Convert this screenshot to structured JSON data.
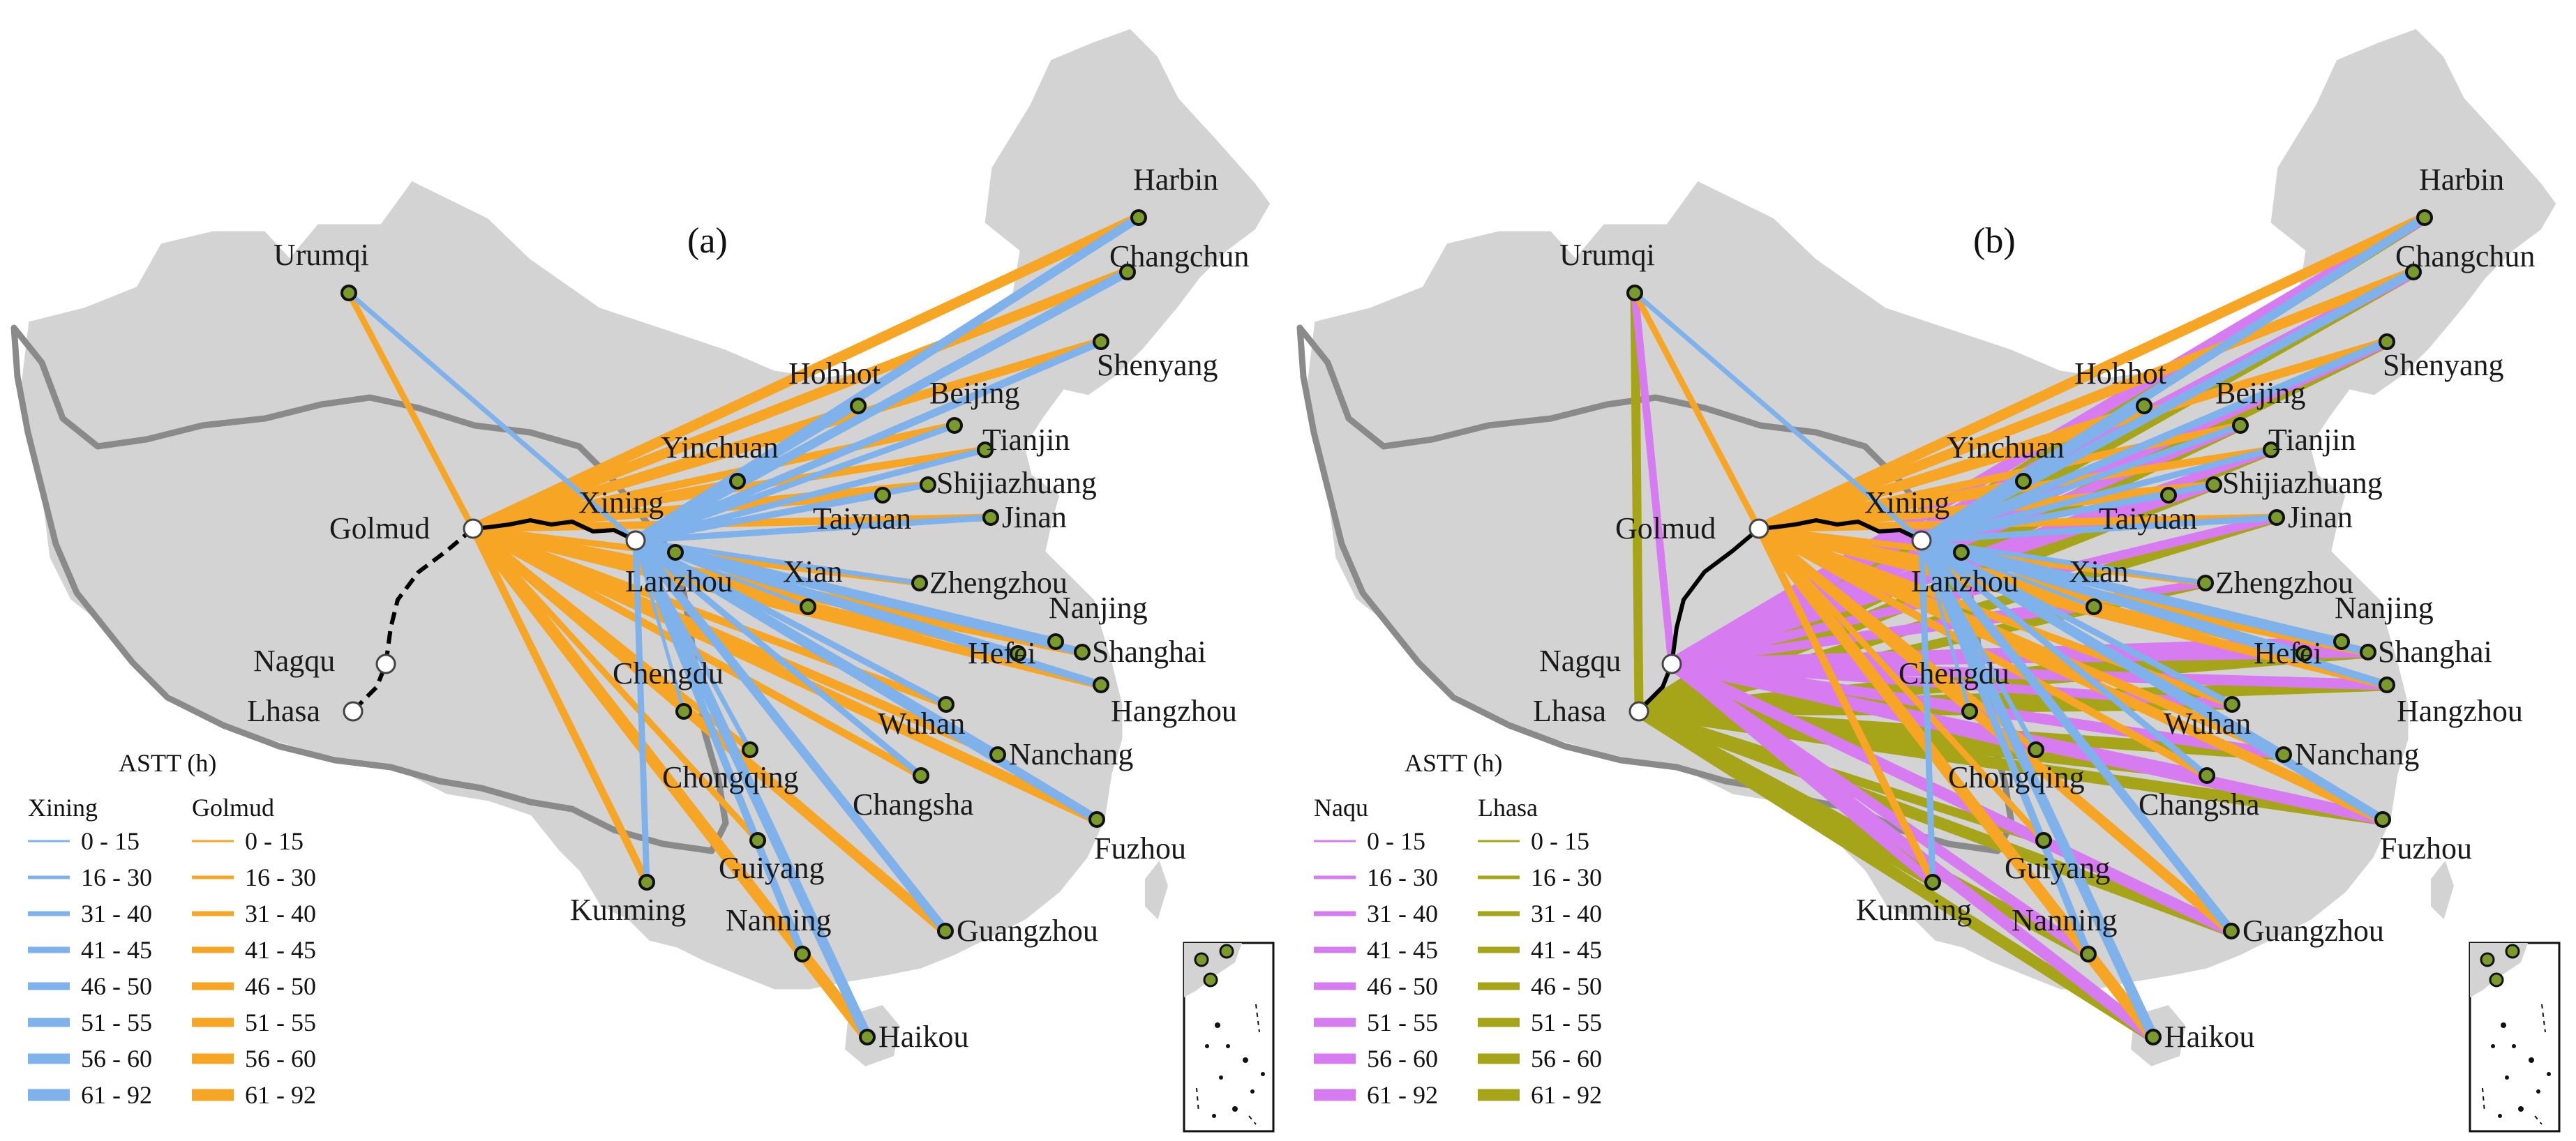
{
  "colors": {
    "xining": "#7fb2ea",
    "golmud": "#f7a525",
    "naqu": "#d77cf0",
    "lhasa": "#a6a51a",
    "land": "#d3d3d3",
    "land_stroke": "#ffffff",
    "border": "#8a8a8a",
    "railway": "#000000",
    "city_fill": "#7a9a2c",
    "city_stroke": "#111111",
    "origin_fill": "#ffffff"
  },
  "legend": {
    "title": "ASTT (h)",
    "classes": [
      "0 - 15",
      "16 - 30",
      "31 - 40",
      "41 - 45",
      "46 - 50",
      "51 - 55",
      "56 - 60",
      "61 - 92"
    ]
  },
  "panels": [
    {
      "tag": "(a)",
      "legend_cols": [
        "Xining",
        "Golmud"
      ],
      "origins": [
        "Xining",
        "Golmud",
        "Nagqu",
        "Lhasa"
      ],
      "hubs": [
        "Xining",
        "Golmud"
      ],
      "labels": [
        {
          "name": "Harbin"
        },
        {
          "name": "Changchun"
        },
        {
          "name": "Shenyang"
        },
        {
          "name": "Hohhot"
        },
        {
          "name": "Beijing"
        },
        {
          "name": "Tianjin"
        },
        {
          "name": "Yinchuan"
        },
        {
          "name": "Shijiazhuang"
        },
        {
          "name": "Taiyuan"
        },
        {
          "name": "Jinan"
        },
        {
          "name": "Xining"
        },
        {
          "name": "Golmud"
        },
        {
          "name": "Lanzhou"
        },
        {
          "name": "Xian"
        },
        {
          "name": "Zhengzhou"
        },
        {
          "name": "Nanjing"
        },
        {
          "name": "Hefei"
        },
        {
          "name": "Shanghai"
        },
        {
          "name": "Hangzhou"
        },
        {
          "name": "Nagqu"
        },
        {
          "name": "Chengdu"
        },
        {
          "name": "Wuhan"
        },
        {
          "name": "Lhasa"
        },
        {
          "name": "Chongqing"
        },
        {
          "name": "Nanchang"
        },
        {
          "name": "Changsha"
        },
        {
          "name": "Fuzhou"
        },
        {
          "name": "Guiyang"
        },
        {
          "name": "Kunming"
        },
        {
          "name": "Nanning"
        },
        {
          "name": "Guangzhou"
        },
        {
          "name": "Haikou"
        },
        {
          "name": "Urumqi"
        }
      ]
    },
    {
      "tag": "(b)",
      "legend_cols": [
        "Naqu",
        "Lhasa"
      ],
      "origins": [
        "Xining",
        "Golmud",
        "Nagqu",
        "Lhasa"
      ],
      "hubs": [
        "Xining",
        "Golmud",
        "Nagqu",
        "Lhasa"
      ],
      "labels": [
        {
          "name": "Harbin"
        },
        {
          "name": "Changchun"
        },
        {
          "name": "Shenyang"
        },
        {
          "name": "Hohhot"
        },
        {
          "name": "Beijing"
        },
        {
          "name": "Tianjin"
        },
        {
          "name": "Yinchuan"
        },
        {
          "name": "Shijiazhuang"
        },
        {
          "name": "Taiyuan"
        },
        {
          "name": "Jinan"
        },
        {
          "name": "Xining"
        },
        {
          "name": "Golmud"
        },
        {
          "name": "Lanzhou"
        },
        {
          "name": "Xian"
        },
        {
          "name": "Zhengzhou"
        },
        {
          "name": "Nanjing"
        },
        {
          "name": "Hefei"
        },
        {
          "name": "Shanghai"
        },
        {
          "name": "Hangzhou"
        },
        {
          "name": "Nagqu"
        },
        {
          "name": "Chengdu"
        },
        {
          "name": "Wuhan"
        },
        {
          "name": "Lhasa"
        },
        {
          "name": "Chongqing"
        },
        {
          "name": "Nanchang"
        },
        {
          "name": "Changsha"
        },
        {
          "name": "Fuzhou"
        },
        {
          "name": "Guiyang"
        },
        {
          "name": "Kunming"
        },
        {
          "name": "Nanning"
        },
        {
          "name": "Guangzhou"
        },
        {
          "name": "Haikou"
        },
        {
          "name": "Urumqi"
        }
      ]
    }
  ]
}
